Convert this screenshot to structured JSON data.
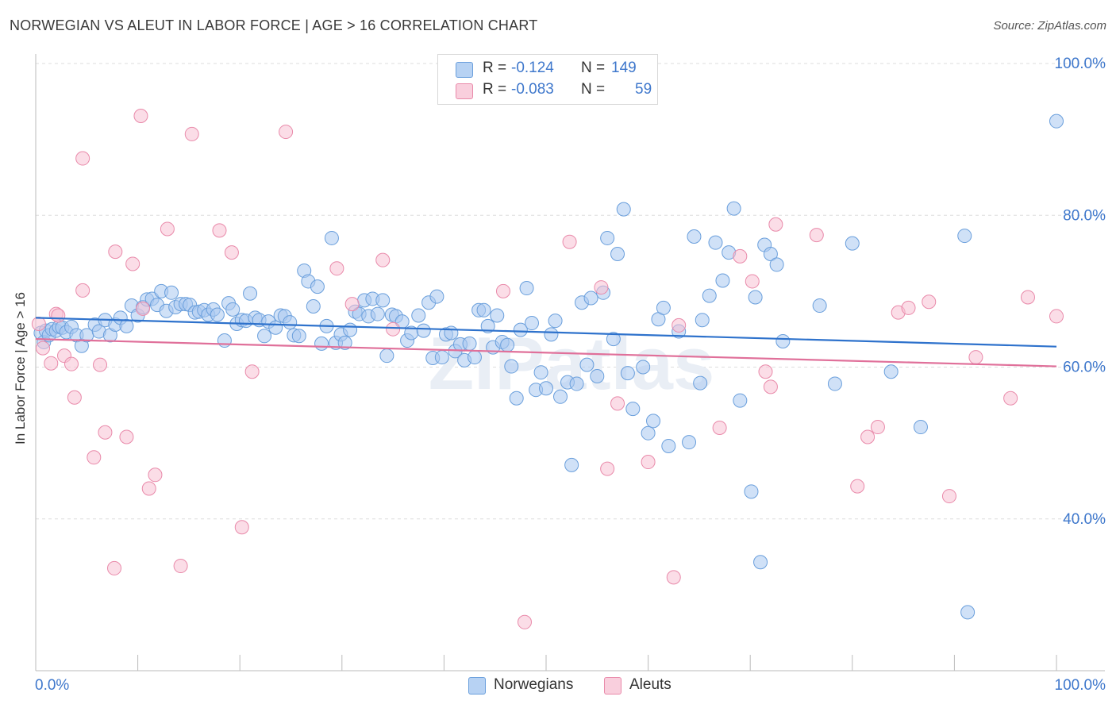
{
  "header": {
    "title": "NORWEGIAN VS ALEUT IN LABOR FORCE | AGE > 16 CORRELATION CHART",
    "source": "Source: ZipAtlas.com"
  },
  "legend": {
    "rows": [
      {
        "r_label": "R =",
        "r_value": "-0.124",
        "n_label": "N =",
        "n_value": "149"
      },
      {
        "r_label": "R =",
        "r_value": "-0.083",
        "n_label": "N =",
        "n_value": "59"
      }
    ]
  },
  "bottom_legend": [
    "Norwegians",
    "Aleuts"
  ],
  "colors": {
    "blue_fill": "#a9c8f0",
    "blue_stroke": "#6a9fdc",
    "blue_line": "#2e72cc",
    "pink_fill": "#f7c1d3",
    "pink_stroke": "#e98aaa",
    "pink_line": "#e0709a",
    "axis_label": "#3f78cc",
    "grid": "#dddddd"
  },
  "watermark": "ZIPatlas",
  "chart_data": {
    "type": "scatter",
    "title": "NORWEGIAN VS ALEUT IN LABOR FORCE | AGE > 16 CORRELATION CHART",
    "xlabel": "",
    "ylabel": "In Labor Force | Age > 16",
    "xlim": [
      0,
      100
    ],
    "ylim": [
      20,
      100
    ],
    "x_tick_labels": [
      "0.0%",
      "100.0%"
    ],
    "y_tick_labels": [
      "40.0%",
      "60.0%",
      "80.0%",
      "100.0%"
    ],
    "y_ticks": [
      40,
      60,
      80,
      100
    ],
    "grid": "horizontal dashed",
    "series": [
      {
        "name": "Norwegians",
        "trend": [
          [
            0,
            66.5
          ],
          [
            100,
            62.7
          ]
        ],
        "points": [
          [
            0.5,
            64.5
          ],
          [
            0.8,
            63.3
          ],
          [
            1.0,
            64.8
          ],
          [
            1.3,
            64.2
          ],
          [
            1.6,
            65.0
          ],
          [
            2.0,
            64.8
          ],
          [
            2.3,
            65.3
          ],
          [
            2.6,
            65.2
          ],
          [
            3.0,
            64.6
          ],
          [
            3.5,
            65.3
          ],
          [
            4.0,
            64.2
          ],
          [
            4.5,
            62.8
          ],
          [
            5.0,
            64.2
          ],
          [
            5.8,
            65.6
          ],
          [
            6.2,
            64.7
          ],
          [
            6.8,
            66.2
          ],
          [
            7.3,
            64.2
          ],
          [
            7.8,
            65.6
          ],
          [
            8.3,
            66.5
          ],
          [
            8.9,
            65.4
          ],
          [
            9.4,
            68.1
          ],
          [
            10.0,
            66.8
          ],
          [
            10.5,
            67.9
          ],
          [
            10.9,
            68.9
          ],
          [
            11.4,
            69.0
          ],
          [
            11.9,
            68.2
          ],
          [
            12.3,
            70.0
          ],
          [
            12.8,
            67.4
          ],
          [
            13.3,
            69.8
          ],
          [
            13.7,
            67.9
          ],
          [
            14.2,
            68.3
          ],
          [
            14.7,
            68.3
          ],
          [
            15.1,
            68.2
          ],
          [
            15.6,
            67.2
          ],
          [
            16.0,
            67.3
          ],
          [
            16.5,
            67.5
          ],
          [
            16.9,
            66.9
          ],
          [
            17.4,
            67.6
          ],
          [
            17.8,
            66.9
          ],
          [
            18.5,
            63.5
          ],
          [
            18.9,
            68.4
          ],
          [
            19.3,
            67.6
          ],
          [
            19.7,
            65.7
          ],
          [
            20.2,
            66.2
          ],
          [
            20.6,
            66.1
          ],
          [
            21.0,
            69.7
          ],
          [
            21.5,
            66.5
          ],
          [
            21.9,
            66.2
          ],
          [
            22.4,
            64.1
          ],
          [
            22.8,
            66.0
          ],
          [
            23.5,
            65.2
          ],
          [
            24.0,
            66.8
          ],
          [
            24.4,
            66.7
          ],
          [
            24.9,
            65.9
          ],
          [
            25.3,
            64.2
          ],
          [
            25.8,
            64.1
          ],
          [
            26.3,
            72.7
          ],
          [
            26.7,
            71.3
          ],
          [
            27.2,
            68.0
          ],
          [
            27.6,
            70.6
          ],
          [
            28.0,
            63.1
          ],
          [
            28.5,
            65.4
          ],
          [
            29.0,
            77.0
          ],
          [
            29.4,
            63.2
          ],
          [
            29.9,
            64.3
          ],
          [
            30.3,
            63.2
          ],
          [
            30.8,
            64.9
          ],
          [
            31.3,
            67.3
          ],
          [
            31.7,
            67.0
          ],
          [
            32.2,
            68.8
          ],
          [
            32.6,
            66.7
          ],
          [
            33.0,
            69.0
          ],
          [
            33.5,
            67.0
          ],
          [
            34.0,
            68.8
          ],
          [
            34.4,
            61.5
          ],
          [
            34.9,
            66.9
          ],
          [
            35.3,
            66.7
          ],
          [
            35.9,
            66.0
          ],
          [
            36.4,
            63.5
          ],
          [
            36.8,
            64.5
          ],
          [
            37.5,
            66.8
          ],
          [
            38.0,
            64.8
          ],
          [
            38.5,
            68.5
          ],
          [
            38.9,
            61.2
          ],
          [
            39.3,
            69.3
          ],
          [
            39.8,
            61.3
          ],
          [
            40.2,
            64.3
          ],
          [
            40.7,
            64.5
          ],
          [
            41.1,
            62.1
          ],
          [
            41.6,
            63.0
          ],
          [
            42.0,
            60.9
          ],
          [
            42.5,
            63.1
          ],
          [
            43.0,
            61.3
          ],
          [
            43.4,
            67.5
          ],
          [
            43.9,
            67.5
          ],
          [
            44.3,
            65.4
          ],
          [
            44.8,
            62.6
          ],
          [
            45.2,
            66.8
          ],
          [
            45.7,
            63.3
          ],
          [
            46.2,
            62.9
          ],
          [
            46.6,
            60.1
          ],
          [
            47.1,
            55.9
          ],
          [
            47.5,
            64.9
          ],
          [
            48.1,
            70.4
          ],
          [
            48.6,
            65.8
          ],
          [
            49.0,
            57.0
          ],
          [
            49.5,
            59.3
          ],
          [
            50.0,
            57.2
          ],
          [
            50.5,
            64.3
          ],
          [
            50.9,
            66.1
          ],
          [
            51.4,
            56.1
          ],
          [
            52.1,
            58.0
          ],
          [
            52.5,
            47.1
          ],
          [
            53.0,
            57.8
          ],
          [
            53.5,
            68.5
          ],
          [
            54.0,
            60.3
          ],
          [
            54.4,
            69.1
          ],
          [
            55.0,
            58.8
          ],
          [
            55.6,
            69.8
          ],
          [
            56.0,
            77.0
          ],
          [
            56.6,
            63.7
          ],
          [
            57.0,
            74.9
          ],
          [
            57.6,
            80.8
          ],
          [
            58.0,
            59.2
          ],
          [
            58.5,
            54.5
          ],
          [
            59.5,
            60.0
          ],
          [
            60.0,
            51.3
          ],
          [
            60.5,
            52.9
          ],
          [
            61.0,
            66.3
          ],
          [
            61.5,
            67.8
          ],
          [
            62.0,
            49.6
          ],
          [
            63.0,
            64.7
          ],
          [
            64.0,
            50.1
          ],
          [
            64.5,
            77.2
          ],
          [
            65.1,
            57.9
          ],
          [
            65.3,
            66.2
          ],
          [
            66.0,
            69.4
          ],
          [
            66.6,
            76.4
          ],
          [
            67.3,
            71.4
          ],
          [
            67.9,
            75.1
          ],
          [
            68.4,
            80.9
          ],
          [
            69.0,
            55.6
          ],
          [
            70.1,
            43.6
          ],
          [
            70.5,
            69.2
          ],
          [
            71.0,
            34.3
          ],
          [
            71.4,
            76.1
          ],
          [
            72.0,
            74.9
          ],
          [
            72.6,
            73.5
          ],
          [
            73.2,
            63.4
          ],
          [
            76.8,
            68.1
          ],
          [
            78.3,
            57.8
          ],
          [
            80.0,
            76.3
          ],
          [
            83.8,
            59.4
          ],
          [
            86.7,
            52.1
          ],
          [
            91.0,
            77.3
          ],
          [
            91.3,
            27.7
          ],
          [
            100.0,
            92.4
          ]
        ]
      },
      {
        "name": "Aleuts",
        "trend": [
          [
            0,
            63.7
          ],
          [
            100,
            60.1
          ]
        ],
        "points": [
          [
            0.3,
            65.7
          ],
          [
            0.7,
            62.5
          ],
          [
            1.5,
            60.5
          ],
          [
            2.0,
            67.0
          ],
          [
            2.2,
            66.8
          ],
          [
            2.8,
            61.5
          ],
          [
            3.5,
            60.4
          ],
          [
            3.8,
            56.0
          ],
          [
            4.6,
            87.5
          ],
          [
            4.6,
            70.1
          ],
          [
            5.7,
            48.1
          ],
          [
            6.3,
            60.3
          ],
          [
            6.8,
            51.4
          ],
          [
            7.7,
            33.5
          ],
          [
            7.8,
            75.2
          ],
          [
            8.9,
            50.8
          ],
          [
            9.5,
            73.6
          ],
          [
            10.3,
            93.1
          ],
          [
            10.5,
            67.7
          ],
          [
            11.1,
            44.0
          ],
          [
            11.7,
            45.8
          ],
          [
            12.9,
            78.2
          ],
          [
            14.2,
            33.8
          ],
          [
            15.3,
            90.7
          ],
          [
            18.0,
            78.0
          ],
          [
            19.2,
            75.1
          ],
          [
            20.2,
            38.9
          ],
          [
            21.2,
            59.4
          ],
          [
            24.5,
            91.0
          ],
          [
            29.5,
            73.0
          ],
          [
            31.0,
            68.3
          ],
          [
            34.0,
            74.1
          ],
          [
            35.0,
            65.0
          ],
          [
            45.8,
            70.0
          ],
          [
            47.9,
            26.4
          ],
          [
            52.3,
            76.5
          ],
          [
            55.4,
            70.5
          ],
          [
            57.0,
            55.2
          ],
          [
            56.0,
            46.6
          ],
          [
            60.0,
            47.5
          ],
          [
            62.5,
            32.3
          ],
          [
            63.0,
            65.5
          ],
          [
            67.0,
            52.0
          ],
          [
            69.0,
            74.6
          ],
          [
            70.2,
            71.3
          ],
          [
            71.5,
            59.4
          ],
          [
            72.0,
            57.4
          ],
          [
            72.5,
            78.8
          ],
          [
            76.5,
            77.4
          ],
          [
            80.5,
            44.3
          ],
          [
            81.5,
            50.8
          ],
          [
            82.5,
            52.1
          ],
          [
            84.5,
            67.2
          ],
          [
            85.5,
            67.8
          ],
          [
            87.5,
            68.6
          ],
          [
            89.5,
            43.0
          ],
          [
            92.1,
            61.3
          ],
          [
            95.5,
            55.9
          ],
          [
            97.2,
            69.2
          ],
          [
            100.0,
            66.7
          ]
        ]
      }
    ]
  }
}
